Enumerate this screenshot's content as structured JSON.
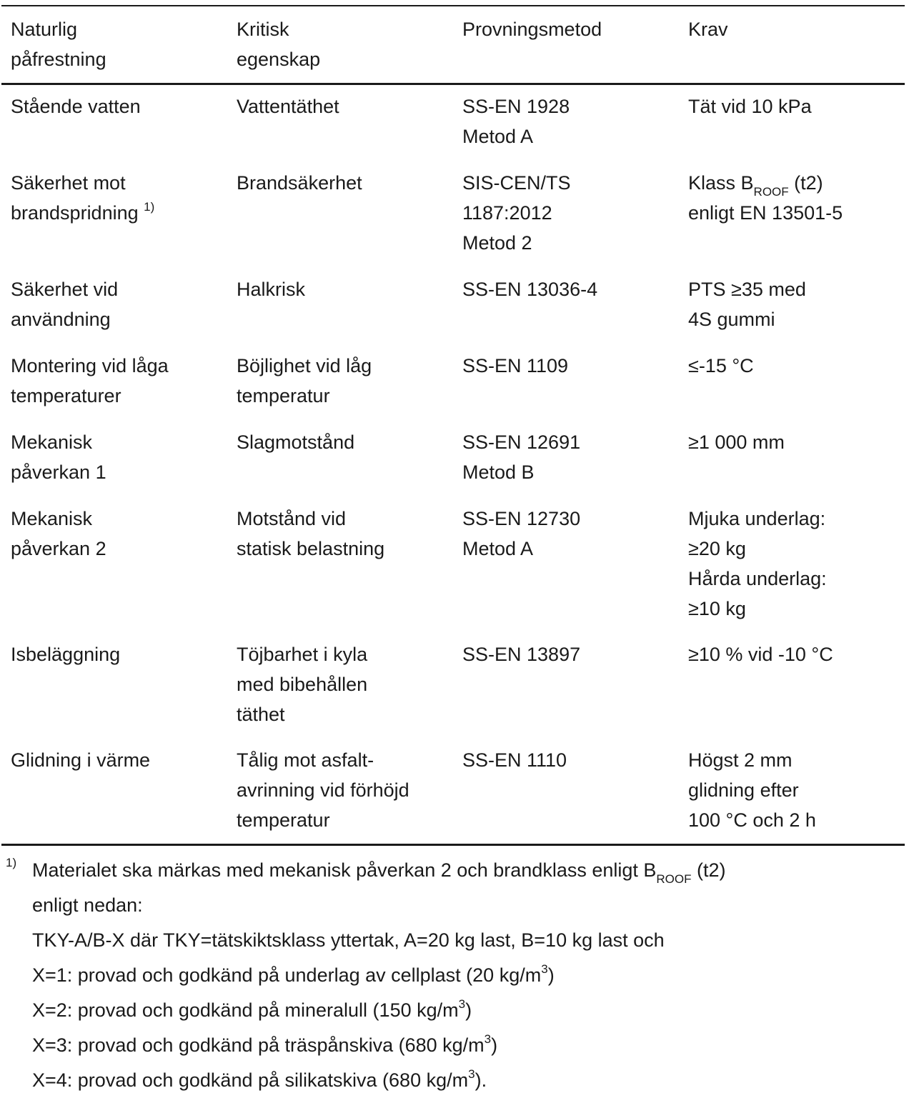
{
  "table": {
    "headers": [
      [
        "Naturlig",
        "påfrestning"
      ],
      [
        "Kritisk",
        "egenskap"
      ],
      [
        "Provningsmetod"
      ],
      [
        "Krav"
      ]
    ],
    "rows": [
      {
        "c1": [
          "Stående vatten"
        ],
        "c2": [
          "Vattentäthet"
        ],
        "c3": [
          "SS-EN 1928",
          "Metod A"
        ],
        "c4": [
          "Tät vid 10 kPa"
        ]
      },
      {
        "c1": [
          "Säkerhet mot",
          "brandspridning"
        ],
        "c1_sup": "1)",
        "c2": [
          "Brandsäkerhet"
        ],
        "c3": [
          "SIS-CEN/TS",
          "1187:2012",
          "Metod 2"
        ],
        "c4_line1_pre": "Klass B",
        "c4_line1_sub": "ROOF",
        "c4_line1_post": " (t2)",
        "c4_line2": "enligt EN 13501-5"
      },
      {
        "c1": [
          "Säkerhet vid",
          "användning"
        ],
        "c2": [
          "Halkrisk"
        ],
        "c3": [
          "SS-EN 13036-4"
        ],
        "c4": [
          "PTS ≥35 med",
          "4S gummi"
        ]
      },
      {
        "c1": [
          "Montering vid låga",
          "temperaturer"
        ],
        "c2": [
          "Böjlighet vid låg",
          "temperatur"
        ],
        "c3": [
          "SS-EN 1109"
        ],
        "c4": [
          "≤-15 °C"
        ]
      },
      {
        "c1": [
          "Mekanisk",
          "påverkan 1"
        ],
        "c2": [
          "Slagmotstånd"
        ],
        "c3": [
          "SS-EN 12691",
          "Metod B"
        ],
        "c4": [
          "≥1 000 mm"
        ]
      },
      {
        "c1": [
          "Mekanisk",
          "påverkan 2"
        ],
        "c2": [
          "Motstånd vid",
          "statisk belastning"
        ],
        "c3": [
          "SS-EN 12730",
          "Metod A"
        ],
        "c4": [
          "Mjuka underlag:",
          "≥20 kg",
          "Hårda underlag:",
          "≥10 kg"
        ]
      },
      {
        "c1": [
          "Isbeläggning"
        ],
        "c2": [
          "Töjbarhet i kyla",
          "med bibehållen",
          "täthet"
        ],
        "c3": [
          "SS-EN 13897"
        ],
        "c4": [
          "≥10 % vid -10 °C"
        ]
      },
      {
        "c1": [
          "Glidning i värme"
        ],
        "c2": [
          "Tålig mot asfalt-",
          "avrinning vid förhöjd",
          "temperatur"
        ],
        "c3": [
          "SS-EN 1110"
        ],
        "c4": [
          "Högst 2 mm",
          "glidning efter",
          "100 °C och 2 h"
        ]
      }
    ]
  },
  "footnote": {
    "marker": "1)",
    "line1_pre": "Materialet ska märkas med mekanisk påverkan 2 och brandklass enligt B",
    "line1_sub": "ROOF",
    "line1_post": " (t2)",
    "line2": "enligt nedan:",
    "line3": "TKY-A/B-X där TKY=tätskiktsklass yttertak, A=20 kg last, B=10 kg last och",
    "x_lines": [
      {
        "pre": "X=1: provad och godkänd på underlag av cellplast (20 kg/m",
        "sup": "3",
        "post": ")"
      },
      {
        "pre": "X=2: provad och godkänd på mineralull (150 kg/m",
        "sup": "3",
        "post": ")"
      },
      {
        "pre": "X=3: provad och godkänd på träspånskiva (680 kg/m",
        "sup": "3",
        "post": ")"
      },
      {
        "pre": "X=4: provad och godkänd på silikatskiva (680 kg/m",
        "sup": "3",
        "post": ")."
      }
    ]
  }
}
